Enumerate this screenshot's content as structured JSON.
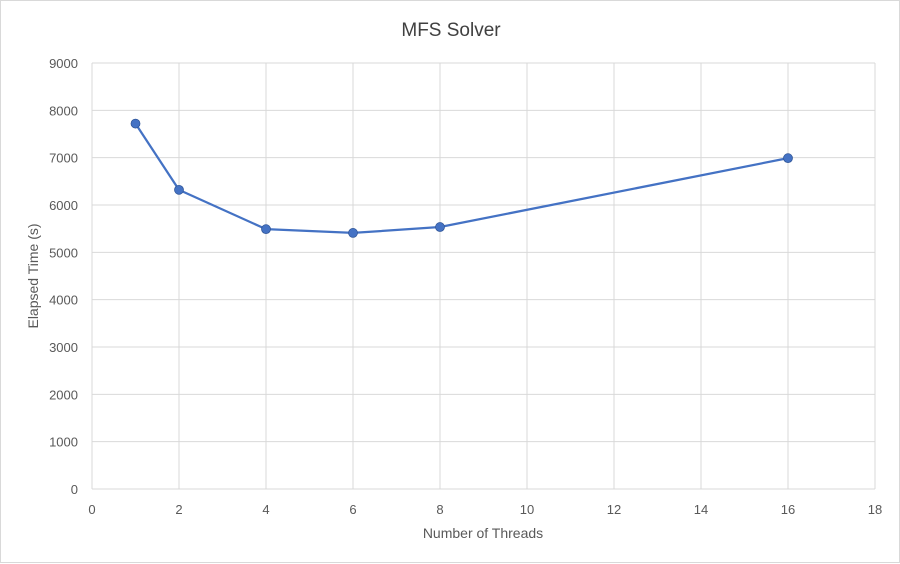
{
  "chart_data": {
    "type": "line",
    "title": "MFS Solver",
    "xlabel": "Number of Threads",
    "ylabel": "Elapsed Time (s)",
    "xlim": [
      0,
      18
    ],
    "ylim": [
      0,
      9000
    ],
    "xticks": [
      0,
      2,
      4,
      6,
      8,
      10,
      12,
      14,
      16,
      18
    ],
    "yticks": [
      0,
      1000,
      2000,
      3000,
      4000,
      5000,
      6000,
      7000,
      8000,
      9000
    ],
    "grid": true,
    "legend": "none",
    "series": [
      {
        "name": "Elapsed Time",
        "color": "#4472c4",
        "x": [
          1,
          2,
          4,
          6,
          8,
          16
        ],
        "y": [
          7720,
          6320,
          5490,
          5410,
          5535,
          6990
        ]
      }
    ]
  }
}
